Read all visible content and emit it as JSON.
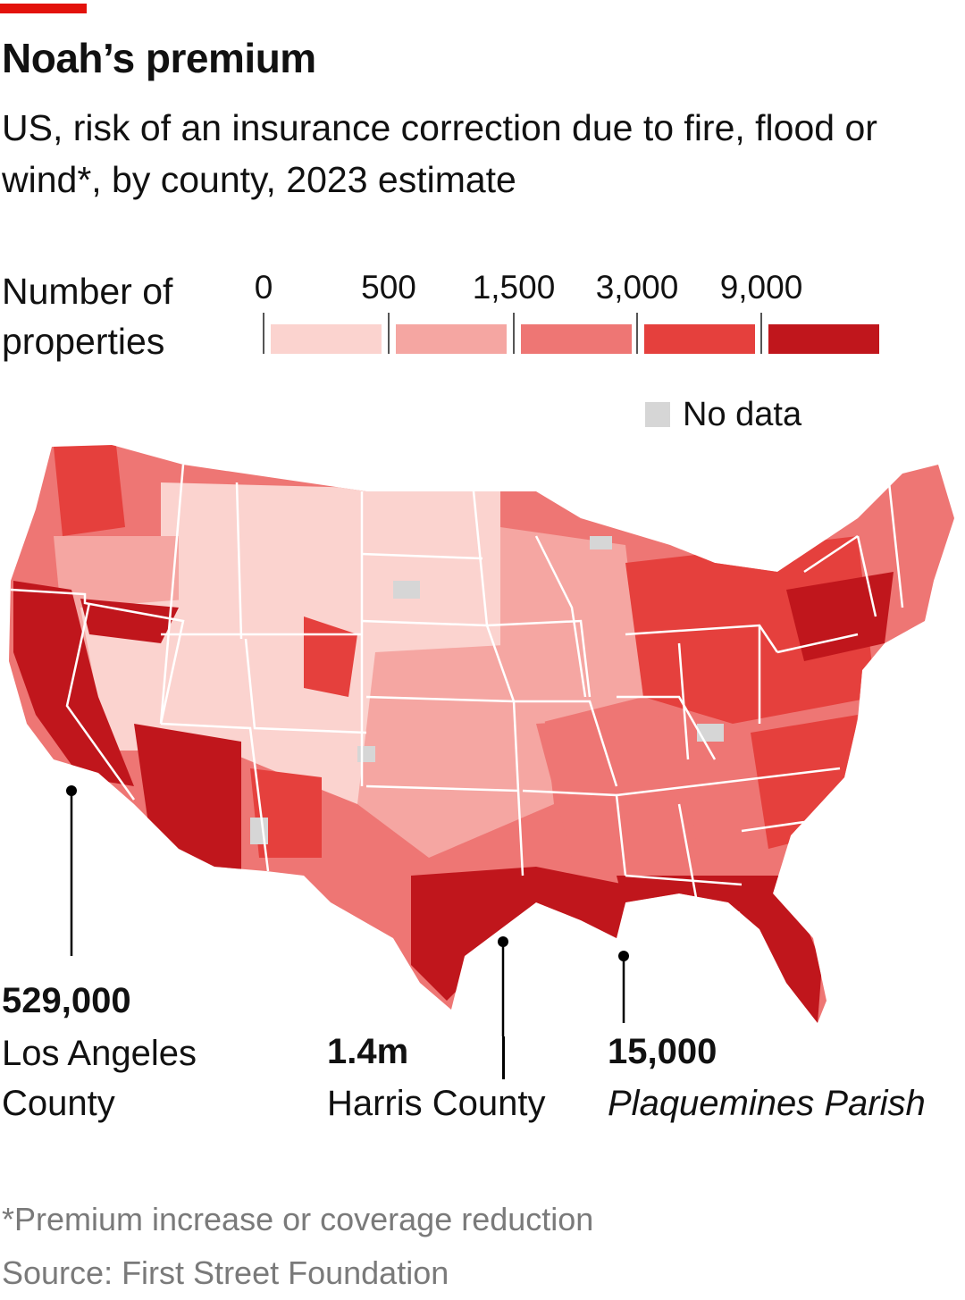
{
  "header": {
    "title": "Noah’s premium",
    "subtitle": "US, risk of an insurance correction due to fire, flood or wind*, by county, 2023 estimate",
    "accent_color": "#e3120b"
  },
  "legend": {
    "title_line1": "Number of",
    "title_line2": "properties",
    "ticks": [
      "0",
      "500",
      "1,500",
      "3,000",
      "9,000"
    ],
    "bins": [
      {
        "from": 0,
        "to": 500,
        "color": "#fbd3cf"
      },
      {
        "from": 500,
        "to": 1500,
        "color": "#f5a6a2"
      },
      {
        "from": 1500,
        "to": 3000,
        "color": "#ee7674"
      },
      {
        "from": 3000,
        "to": 9000,
        "color": "#e5403d"
      },
      {
        "from": 9000,
        "to": null,
        "color": "#c0161c"
      }
    ],
    "no_data_label": "No data",
    "no_data_color": "#d6d6d6"
  },
  "map": {
    "region": "Contiguous United States, counties",
    "state_border_color": "#ffffff",
    "pattern": "Highest counts along Gulf coast, Florida, Atlantic coast, California and the West; lowest across the Great Plains"
  },
  "callouts": [
    {
      "value": "529,000",
      "name_line1": "Los Angeles",
      "name_line2": "County",
      "italic": false
    },
    {
      "value": "1.4m",
      "name_line1": "Harris County",
      "name_line2": "",
      "italic": false
    },
    {
      "value": "15,000",
      "name_line1": "Plaquemines Parish",
      "name_line2": "",
      "italic": true
    }
  ],
  "footer": {
    "footnote": "*Premium increase or coverage reduction",
    "source": "Source: First Street Foundation"
  }
}
